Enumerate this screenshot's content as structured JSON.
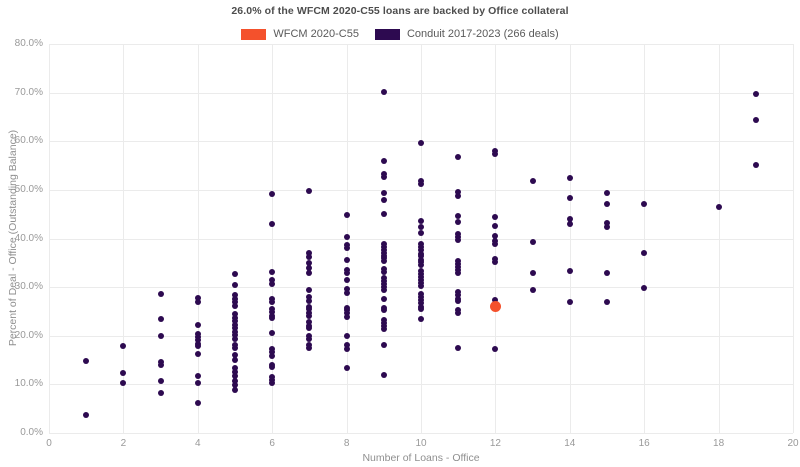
{
  "title": "26.0% of the WFCM 2020-C55 loans are backed by Office collateral",
  "legend": [
    {
      "label": "WFCM 2020-C55",
      "color": "#f4512c"
    },
    {
      "label": "Conduit 2017-2023 (266 deals)",
      "color": "#2d0a50"
    }
  ],
  "colors": {
    "wfcm_orange": "#f4512c",
    "conduit_purple": "#2d0a50",
    "title_text": "#4d4d4d",
    "tick_text": "#999999",
    "gridline": "#ebebeb",
    "background": "#ffffff"
  },
  "chart_data": {
    "type": "scatter",
    "title": "26.0% of the WFCM 2020-C55 loans are backed by Office collateral",
    "xlabel": "Number of Loans - Office",
    "ylabel": "Percent of Deal - Office (Outstanding Balance)",
    "xlim": [
      0,
      20
    ],
    "ylim": [
      0,
      80
    ],
    "grid": true,
    "legend_position": "top-center",
    "x_ticks": [
      "0",
      "2",
      "4",
      "6",
      "8",
      "10",
      "12",
      "14",
      "16",
      "18",
      "20"
    ],
    "y_ticks": [
      "0.0%",
      "10.0%",
      "20.0%",
      "30.0%",
      "40.0%",
      "50.0%",
      "60.0%",
      "70.0%",
      "80.0%"
    ],
    "series": [
      {
        "name": "WFCM 2020-C55",
        "color": "#f4512c",
        "marker_diameter": 11,
        "points": [
          [
            12,
            26.0
          ]
        ]
      },
      {
        "name": "Conduit 2017-2023 (266 deals)",
        "color": "#2d0a50",
        "marker_diameter": 6,
        "points": [
          [
            1,
            14.8
          ],
          [
            1,
            3.8
          ],
          [
            2,
            17.9
          ],
          [
            2,
            12.3
          ],
          [
            2,
            10.2
          ],
          [
            3,
            28.5
          ],
          [
            3,
            23.5
          ],
          [
            3,
            19.9
          ],
          [
            3,
            14.5
          ],
          [
            3,
            13.9
          ],
          [
            3,
            10.7
          ],
          [
            3,
            8.2
          ],
          [
            4,
            27.8
          ],
          [
            4,
            26.9
          ],
          [
            4,
            22.3
          ],
          [
            4,
            20.4
          ],
          [
            4,
            19.8
          ],
          [
            4,
            19.1
          ],
          [
            4,
            18.3
          ],
          [
            4,
            17.9
          ],
          [
            4,
            16.3
          ],
          [
            4,
            11.7
          ],
          [
            4,
            10.2
          ],
          [
            4,
            6.2
          ],
          [
            5,
            32.7
          ],
          [
            5,
            30.4
          ],
          [
            5,
            28.4
          ],
          [
            5,
            27.6
          ],
          [
            5,
            26.9
          ],
          [
            5,
            26.2
          ],
          [
            5,
            24.4
          ],
          [
            5,
            23.7
          ],
          [
            5,
            23.0
          ],
          [
            5,
            22.3
          ],
          [
            5,
            21.6
          ],
          [
            5,
            20.8
          ],
          [
            5,
            20.1
          ],
          [
            5,
            19.4
          ],
          [
            5,
            18.2
          ],
          [
            5,
            17.5
          ],
          [
            5,
            16.1
          ],
          [
            5,
            15.0
          ],
          [
            5,
            13.3
          ],
          [
            5,
            12.5
          ],
          [
            5,
            11.8
          ],
          [
            5,
            10.6
          ],
          [
            5,
            9.8
          ],
          [
            5,
            8.9
          ],
          [
            6,
            49.2
          ],
          [
            6,
            43.0
          ],
          [
            6,
            33.2
          ],
          [
            6,
            31.4
          ],
          [
            6,
            30.7
          ],
          [
            6,
            27.6
          ],
          [
            6,
            27.0
          ],
          [
            6,
            25.5
          ],
          [
            6,
            24.8
          ],
          [
            6,
            24.1
          ],
          [
            6,
            23.6
          ],
          [
            6,
            20.6
          ],
          [
            6,
            17.3
          ],
          [
            6,
            16.6
          ],
          [
            6,
            15.8
          ],
          [
            6,
            13.9
          ],
          [
            6,
            13.5
          ],
          [
            6,
            11.5
          ],
          [
            6,
            10.9
          ],
          [
            6,
            10.2
          ],
          [
            7,
            49.8
          ],
          [
            7,
            37.0
          ],
          [
            7,
            36.2
          ],
          [
            7,
            35.0
          ],
          [
            7,
            33.9
          ],
          [
            7,
            33.0
          ],
          [
            7,
            29.5
          ],
          [
            7,
            27.9
          ],
          [
            7,
            27.2
          ],
          [
            7,
            26.0
          ],
          [
            7,
            25.4
          ],
          [
            7,
            24.7
          ],
          [
            7,
            24.1
          ],
          [
            7,
            22.8
          ],
          [
            7,
            22.1
          ],
          [
            7,
            21.5
          ],
          [
            7,
            20.0
          ],
          [
            7,
            19.4
          ],
          [
            7,
            18.0
          ],
          [
            7,
            17.4
          ],
          [
            8,
            44.8
          ],
          [
            8,
            40.4
          ],
          [
            8,
            38.7
          ],
          [
            8,
            38.0
          ],
          [
            8,
            35.5
          ],
          [
            8,
            33.6
          ],
          [
            8,
            32.9
          ],
          [
            8,
            31.5
          ],
          [
            8,
            29.6
          ],
          [
            8,
            28.8
          ],
          [
            8,
            25.8
          ],
          [
            8,
            25.2
          ],
          [
            8,
            24.6
          ],
          [
            8,
            23.9
          ],
          [
            8,
            19.9
          ],
          [
            8,
            18.0
          ],
          [
            8,
            17.3
          ],
          [
            8,
            13.4
          ],
          [
            9,
            70.2
          ],
          [
            9,
            55.9
          ],
          [
            9,
            53.3
          ],
          [
            9,
            52.6
          ],
          [
            9,
            49.3
          ],
          [
            9,
            48.0
          ],
          [
            9,
            45.0
          ],
          [
            9,
            38.9
          ],
          [
            9,
            38.3
          ],
          [
            9,
            37.7
          ],
          [
            9,
            37.1
          ],
          [
            9,
            36.5
          ],
          [
            9,
            35.9
          ],
          [
            9,
            35.3
          ],
          [
            9,
            33.7
          ],
          [
            9,
            33.2
          ],
          [
            9,
            31.9
          ],
          [
            9,
            31.3
          ],
          [
            9,
            30.6
          ],
          [
            9,
            30.0
          ],
          [
            9,
            29.5
          ],
          [
            9,
            27.6
          ],
          [
            9,
            25.8
          ],
          [
            9,
            25.2
          ],
          [
            9,
            23.3
          ],
          [
            9,
            22.6
          ],
          [
            9,
            22.0
          ],
          [
            9,
            21.3
          ],
          [
            9,
            18.2
          ],
          [
            9,
            12.0
          ],
          [
            10,
            59.7
          ],
          [
            10,
            51.9
          ],
          [
            10,
            51.3
          ],
          [
            10,
            43.7
          ],
          [
            10,
            42.3
          ],
          [
            10,
            41.2
          ],
          [
            10,
            38.9
          ],
          [
            10,
            38.2
          ],
          [
            10,
            37.6
          ],
          [
            10,
            36.9
          ],
          [
            10,
            36.4
          ],
          [
            10,
            35.6
          ],
          [
            10,
            35.1
          ],
          [
            10,
            34.5
          ],
          [
            10,
            33.4
          ],
          [
            10,
            32.8
          ],
          [
            10,
            32.1
          ],
          [
            10,
            31.5
          ],
          [
            10,
            30.8
          ],
          [
            10,
            30.2
          ],
          [
            10,
            28.6
          ],
          [
            10,
            28.0
          ],
          [
            10,
            27.3
          ],
          [
            10,
            26.7
          ],
          [
            10,
            26.0
          ],
          [
            10,
            25.5
          ],
          [
            10,
            23.5
          ],
          [
            11,
            56.7
          ],
          [
            11,
            49.6
          ],
          [
            11,
            48.8
          ],
          [
            11,
            44.7
          ],
          [
            11,
            43.4
          ],
          [
            11,
            41.0
          ],
          [
            11,
            40.3
          ],
          [
            11,
            39.7
          ],
          [
            11,
            35.4
          ],
          [
            11,
            34.8
          ],
          [
            11,
            34.1
          ],
          [
            11,
            33.5
          ],
          [
            11,
            33.0
          ],
          [
            11,
            28.9
          ],
          [
            11,
            28.3
          ],
          [
            11,
            27.6
          ],
          [
            11,
            27.2
          ],
          [
            11,
            25.2
          ],
          [
            11,
            24.6
          ],
          [
            11,
            17.5
          ],
          [
            12,
            58.0
          ],
          [
            12,
            57.3
          ],
          [
            12,
            44.4
          ],
          [
            12,
            42.5
          ],
          [
            12,
            40.6
          ],
          [
            12,
            39.5
          ],
          [
            12,
            38.8
          ],
          [
            12,
            35.8
          ],
          [
            12,
            35.1
          ],
          [
            12,
            27.4
          ],
          [
            12,
            17.3
          ],
          [
            13,
            51.9
          ],
          [
            13,
            39.2
          ],
          [
            13,
            33.0
          ],
          [
            13,
            29.5
          ],
          [
            14,
            52.5
          ],
          [
            14,
            48.3
          ],
          [
            14,
            44.1
          ],
          [
            14,
            43.0
          ],
          [
            14,
            33.4
          ],
          [
            14,
            27.0
          ],
          [
            15,
            49.4
          ],
          [
            15,
            47.0
          ],
          [
            15,
            43.2
          ],
          [
            15,
            42.4
          ],
          [
            15,
            32.9
          ],
          [
            15,
            27.0
          ],
          [
            16,
            47.0
          ],
          [
            16,
            37.0
          ],
          [
            16,
            29.8
          ],
          [
            18,
            46.4
          ],
          [
            19,
            69.7
          ],
          [
            19,
            64.4
          ],
          [
            19,
            55.2
          ]
        ]
      }
    ]
  }
}
